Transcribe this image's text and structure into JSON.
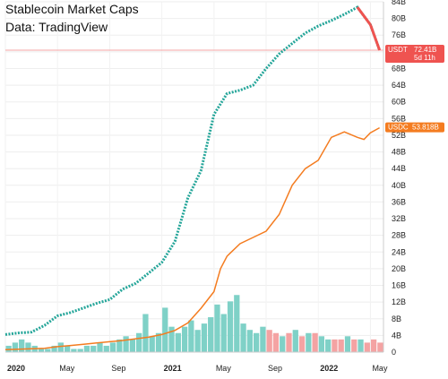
{
  "header": {
    "title": "Stablecoin Market Caps",
    "source": "Data: TradingView"
  },
  "tags": {
    "usdt_symbol": "USDT",
    "usdt_value": "72.41B",
    "usdt_countdown": "5d 11h",
    "usdc_symbol": "USDC",
    "usdc_value": "53.818B"
  },
  "colors": {
    "usdt_up": "#26a69a",
    "usdt_down": "#ef5350",
    "usdc_line": "#f47c20",
    "volume_up": "#7fd1c7",
    "volume_down": "#f4a3a3",
    "price_line": "#f6a5a5"
  },
  "chart_data": {
    "type": "line",
    "title": "Stablecoin Market Caps",
    "subtitle": "Data: TradingView",
    "xlabel": "",
    "ylabel": "",
    "y_unit": "B",
    "ylim": [
      0,
      84
    ],
    "y_ticks": [
      "84B",
      "80B",
      "76B",
      "72B",
      "68B",
      "64B",
      "60B",
      "56B",
      "52B",
      "48B",
      "44B",
      "40B",
      "36B",
      "32B",
      "28B",
      "24B",
      "20B",
      "16B",
      "12B",
      "8B",
      "4B",
      "0"
    ],
    "x_ticks": [
      {
        "label": "2020",
        "t": 0,
        "bold": true
      },
      {
        "label": "May",
        "t": 4,
        "bold": false
      },
      {
        "label": "Sep",
        "t": 8,
        "bold": false
      },
      {
        "label": "2021",
        "t": 12,
        "bold": true
      },
      {
        "label": "May",
        "t": 16,
        "bold": false
      },
      {
        "label": "Sep",
        "t": 20,
        "bold": false
      },
      {
        "label": "2022",
        "t": 24,
        "bold": true
      },
      {
        "label": "May",
        "t": 28,
        "bold": false
      }
    ],
    "x_unit": "months since Jan 2020",
    "series": [
      {
        "name": "USDT",
        "kind": "line",
        "points": [
          [
            0,
            4.2
          ],
          [
            1,
            4.6
          ],
          [
            2,
            4.8
          ],
          [
            3,
            6.4
          ],
          [
            4,
            8.7
          ],
          [
            5,
            9.5
          ],
          [
            6,
            10.6
          ],
          [
            7,
            11.7
          ],
          [
            8,
            12.6
          ],
          [
            9,
            15.1
          ],
          [
            10,
            16.5
          ],
          [
            11,
            19.0
          ],
          [
            12,
            21.5
          ],
          [
            13,
            26.5
          ],
          [
            14,
            37.0
          ],
          [
            15,
            43.5
          ],
          [
            16,
            57.0
          ],
          [
            17,
            62.0
          ],
          [
            18,
            62.8
          ],
          [
            19,
            64.0
          ],
          [
            20,
            68.0
          ],
          [
            21,
            71.5
          ],
          [
            22,
            74.0
          ],
          [
            23,
            76.5
          ],
          [
            24,
            78.2
          ],
          [
            25,
            79.5
          ],
          [
            26,
            81.0
          ],
          [
            27,
            82.7
          ],
          [
            28,
            78.5
          ],
          [
            28.7,
            72.4
          ]
        ]
      },
      {
        "name": "USDC",
        "kind": "line",
        "points": [
          [
            0,
            0.6
          ],
          [
            1,
            0.7
          ],
          [
            2,
            0.8
          ],
          [
            3,
            0.9
          ],
          [
            4,
            1.3
          ],
          [
            5,
            1.6
          ],
          [
            6,
            1.9
          ],
          [
            7,
            2.2
          ],
          [
            8,
            2.5
          ],
          [
            9,
            2.8
          ],
          [
            10,
            3.2
          ],
          [
            11,
            3.6
          ],
          [
            12,
            4.2
          ],
          [
            13,
            5.2
          ],
          [
            14,
            7.0
          ],
          [
            15,
            10.5
          ],
          [
            16,
            14.5
          ],
          [
            16.5,
            20.0
          ],
          [
            17,
            23.0
          ],
          [
            18,
            26.0
          ],
          [
            19,
            27.5
          ],
          [
            20,
            29.0
          ],
          [
            21,
            33.0
          ],
          [
            22,
            40.0
          ],
          [
            23,
            44.0
          ],
          [
            24,
            46.0
          ],
          [
            25,
            51.5
          ],
          [
            26,
            52.8
          ],
          [
            27,
            51.5
          ],
          [
            27.5,
            51.0
          ],
          [
            28,
            52.6
          ],
          [
            28.7,
            53.8
          ]
        ]
      }
    ],
    "volume": {
      "type": "bar",
      "ylim": [
        0,
        24
      ],
      "t": [
        0.25,
        0.75,
        1.25,
        1.75,
        2.25,
        2.75,
        3.25,
        3.75,
        4.25,
        4.75,
        5.25,
        5.75,
        6.25,
        6.75,
        7.25,
        7.75,
        8.25,
        8.75,
        9.25,
        9.75,
        10.25,
        10.75,
        11.25,
        11.75,
        12.25,
        12.75,
        13.25,
        13.75,
        14.25,
        14.75,
        15.25,
        15.75,
        16.25,
        16.75,
        17.25,
        17.75,
        18.25,
        18.75,
        19.25,
        19.75,
        20.25,
        20.75,
        21.25,
        21.75,
        22.25,
        22.75,
        23.25,
        23.75,
        24.25,
        24.75,
        25.25,
        25.75,
        26.25,
        26.75,
        27.25,
        27.75,
        28.25,
        28.75
      ],
      "values": [
        2,
        3,
        4,
        3,
        2,
        1,
        1,
        2,
        3,
        2,
        1,
        1,
        2,
        2,
        3,
        2,
        3,
        4,
        5,
        4,
        6,
        12,
        5,
        6,
        14,
        8,
        6,
        8,
        10,
        7,
        9,
        11,
        15,
        12,
        16,
        18,
        9,
        7,
        6,
        8,
        7,
        6,
        5,
        6,
        7,
        5,
        6,
        6,
        5,
        4,
        4,
        4,
        5,
        4,
        4,
        3,
        4,
        3
      ],
      "up": [
        true,
        true,
        true,
        true,
        true,
        true,
        true,
        true,
        true,
        true,
        true,
        true,
        true,
        true,
        true,
        true,
        true,
        true,
        true,
        true,
        true,
        true,
        true,
        true,
        true,
        true,
        true,
        true,
        true,
        true,
        true,
        true,
        true,
        true,
        true,
        true,
        true,
        true,
        true,
        true,
        false,
        false,
        true,
        false,
        true,
        false,
        true,
        false,
        true,
        true,
        false,
        false,
        true,
        false,
        true,
        false,
        false,
        false
      ]
    }
  }
}
